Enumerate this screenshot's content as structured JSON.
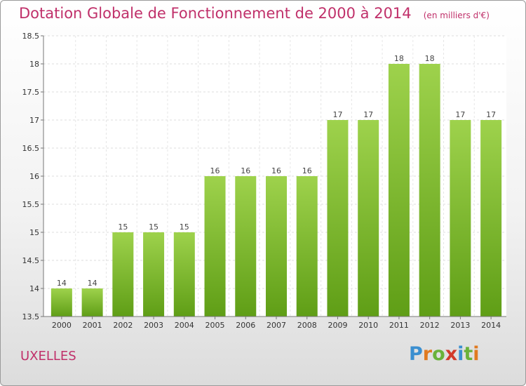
{
  "title": "Dotation Globale de Fonctionnement de 2000 à 2014",
  "subtitle": "(en milliers d'€)",
  "commune": "UXELLES",
  "logo": {
    "letters": [
      "P",
      "r",
      "o",
      "x",
      "i",
      "t",
      "i"
    ],
    "colors": [
      "#3b8fd0",
      "#e07a20",
      "#6ab23a",
      "#d23a2a",
      "#3b8fd0",
      "#6ab23a",
      "#e07a20"
    ]
  },
  "chart_data": {
    "type": "bar",
    "categories": [
      "2000",
      "2001",
      "2002",
      "2003",
      "2004",
      "2005",
      "2006",
      "2007",
      "2008",
      "2009",
      "2010",
      "2011",
      "2012",
      "2013",
      "2014"
    ],
    "values": [
      14,
      14,
      15,
      15,
      15,
      16,
      16,
      16,
      16,
      17,
      17,
      18,
      18,
      17,
      17
    ],
    "data_labels": [
      "14",
      "14",
      "15",
      "15",
      "15",
      "16",
      "16",
      "16",
      "16",
      "17",
      "17",
      "18",
      "18",
      "17",
      "17"
    ],
    "ylim": [
      13.5,
      18.5
    ],
    "yticks": [
      "13.5",
      "14",
      "14.5",
      "15",
      "15.5",
      "16",
      "16.5",
      "17",
      "17.5",
      "18",
      "18.5"
    ],
    "grid": true,
    "bar_color": "#7cc034"
  }
}
